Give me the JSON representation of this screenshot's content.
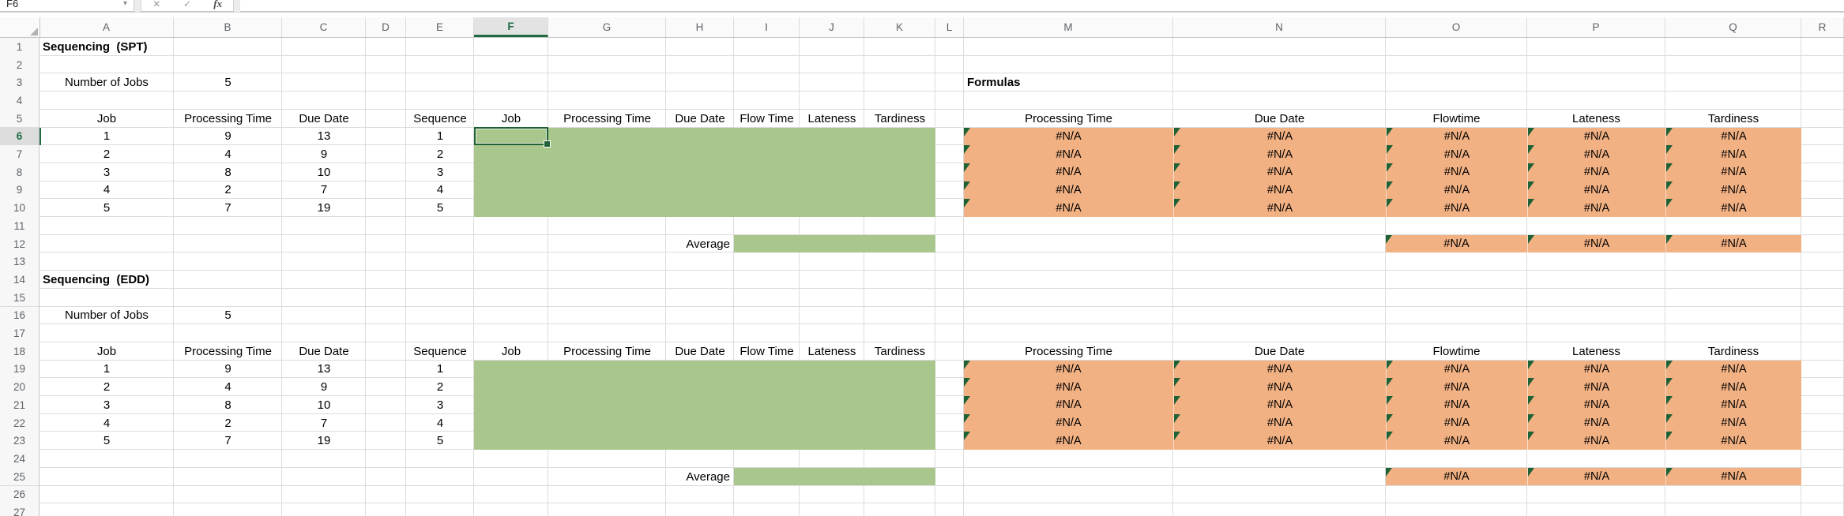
{
  "formula_bar": {
    "name_box_value": "F6",
    "chevron_icon": "▾",
    "cancel_icon": "✕",
    "enter_icon": "✓",
    "fx_label": "fx",
    "formula_input_value": ""
  },
  "grid": {
    "selected_cell": "F6",
    "selected_column": "F",
    "selected_row": 6,
    "column_letters": [
      "A",
      "B",
      "C",
      "D",
      "E",
      "F",
      "G",
      "H",
      "I",
      "J",
      "K",
      "L",
      "M",
      "N",
      "O",
      "P",
      "Q",
      "R"
    ],
    "row_numbers": [
      1,
      2,
      3,
      4,
      5,
      6,
      7,
      8,
      9,
      10,
      11,
      12,
      13,
      14,
      15,
      16,
      17,
      18,
      19,
      20,
      21,
      22,
      23,
      24,
      25,
      26,
      27
    ]
  },
  "colors": {
    "green_fill": "#a9c68c",
    "orange_fill": "#f2b183",
    "accent_green": "#1e6b41",
    "error_triangle": "#1e6135"
  },
  "na_text": "#N/A",
  "green_ranges": [
    "F6:K10",
    "I12:K12",
    "F19:K23",
    "I25:K25"
  ],
  "na_ranges": [
    "M6:Q10",
    "O12:Q12",
    "M19:Q23",
    "O25:Q25"
  ],
  "cells": {
    "A1": {
      "text": "Sequencing  (SPT)",
      "bold": true,
      "align": "left"
    },
    "A3": "Number of Jobs",
    "B3": "5",
    "M3": {
      "text": "Formulas",
      "bold": true,
      "align": "left"
    },
    "A5": "Job",
    "B5": "Processing Time",
    "C5": "Due Date",
    "E5": "Sequence",
    "F5": "Job",
    "G5": "Processing Time",
    "H5": "Due Date",
    "I5": "Flow Time",
    "J5": "Lateness",
    "K5": "Tardiness",
    "M5": "Processing Time",
    "N5": "Due Date",
    "O5": "Flowtime",
    "P5": "Lateness",
    "Q5": "Tardiness",
    "A6": "1",
    "B6": "9",
    "C6": "13",
    "E6": "1",
    "A7": "2",
    "B7": "4",
    "C7": "9",
    "E7": "2",
    "A8": "3",
    "B8": "8",
    "C8": "10",
    "E8": "3",
    "A9": "4",
    "B9": "2",
    "C9": "7",
    "E9": "4",
    "A10": "5",
    "B10": "7",
    "C10": "19",
    "E10": "5",
    "H12": {
      "text": "Average",
      "align": "right"
    },
    "A14": {
      "text": "Sequencing  (EDD)",
      "bold": true,
      "align": "left"
    },
    "A16": "Number of Jobs",
    "B16": "5",
    "A18": "Job",
    "B18": "Processing Time",
    "C18": "Due Date",
    "E18": "Sequence",
    "F18": "Job",
    "G18": "Processing Time",
    "H18": "Due Date",
    "I18": "Flow Time",
    "J18": "Lateness",
    "K18": "Tardiness",
    "M18": "Processing Time",
    "N18": "Due Date",
    "O18": "Flowtime",
    "P18": "Lateness",
    "Q18": "Tardiness",
    "A19": "1",
    "B19": "9",
    "C19": "13",
    "E19": "1",
    "A20": "2",
    "B20": "4",
    "C20": "9",
    "E20": "2",
    "A21": "3",
    "B21": "8",
    "C21": "10",
    "E21": "3",
    "A22": "4",
    "B22": "2",
    "C22": "7",
    "E22": "4",
    "A23": "5",
    "B23": "7",
    "C23": "19",
    "E23": "5",
    "H25": {
      "text": "Average",
      "align": "right"
    }
  }
}
